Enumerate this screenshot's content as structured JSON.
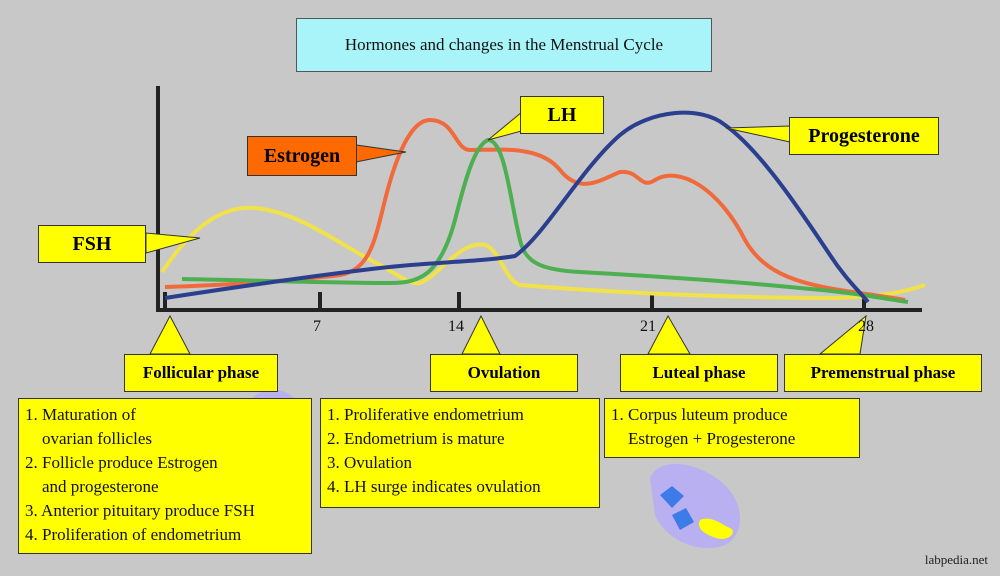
{
  "title": "Hormones and changes in the Menstrual Cycle",
  "hormones": {
    "fsh": {
      "label": "FSH",
      "color": "#f2e24a"
    },
    "estrogen": {
      "label": "Estrogen",
      "color": "#f06a3c"
    },
    "lh": {
      "label": "LH",
      "color": "#4caf50"
    },
    "progesterone": {
      "label": "Progesterone",
      "color": "#2b3f8f"
    }
  },
  "axis": {
    "x_ticks": [
      "7",
      "14",
      "21",
      "28"
    ]
  },
  "phases": [
    {
      "label": "Follicular phase"
    },
    {
      "label": "Ovulation"
    },
    {
      "label": "Luteal phase"
    },
    {
      "label": "Premenstrual  phase"
    }
  ],
  "notes": {
    "follicular": [
      "1. Maturation of",
      "    ovarian follicles",
      "2. Follicle produce Estrogen",
      "    and progesterone",
      "3. Anterior pituitary produce FSH",
      "4. Proliferation of endometrium"
    ],
    "ovulation": [
      "1. Proliferative endometrium",
      "2. Endometrium is mature",
      "3. Ovulation",
      "4. LH surge indicates ovulation"
    ],
    "luteal": [
      "1. Corpus luteum produce",
      "    Estrogen + Progesterone"
    ]
  },
  "watermark": "labpedia.net"
}
